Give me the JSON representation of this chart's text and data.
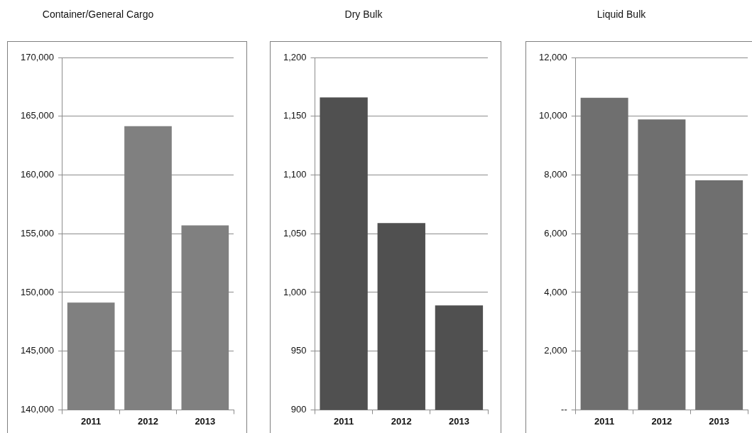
{
  "chart_data": [
    {
      "type": "bar",
      "title": "Container/General Cargo",
      "categories": [
        "2011",
        "2012",
        "2013"
      ],
      "values": [
        149140,
        164160,
        155700
      ],
      "color": "#808080",
      "ylim": [
        140000,
        170000
      ],
      "yticks": [
        {
          "value": 140000,
          "label": "140,000"
        },
        {
          "value": 145000,
          "label": "145,000"
        },
        {
          "value": 150000,
          "label": "150,000"
        },
        {
          "value": 155000,
          "label": "155,000"
        },
        {
          "value": 160000,
          "label": "160,000"
        },
        {
          "value": 165000,
          "label": "165,000"
        },
        {
          "value": 170000,
          "label": "170,000"
        }
      ],
      "grid": "y",
      "legend": false
    },
    {
      "type": "bar",
      "title": "Dry Bulk",
      "categories": [
        "2011",
        "2012",
        "2013"
      ],
      "values": [
        1166,
        1059,
        989
      ],
      "color": "#505050",
      "ylim": [
        900,
        1200
      ],
      "yticks": [
        900,
        950,
        {
          "value": 1000,
          "label": "1,000"
        },
        {
          "value": 1050,
          "label": "1,050"
        },
        {
          "value": 1100,
          "label": "1,100"
        },
        {
          "value": 1150,
          "label": "1,150"
        },
        {
          "value": 1200,
          "label": "1,200"
        }
      ],
      "grid": "y",
      "legend": false
    },
    {
      "type": "bar",
      "title": "Liquid Bulk",
      "categories": [
        "2011",
        "2012",
        "2013"
      ],
      "values": [
        10630,
        9890,
        7820
      ],
      "color": "#6f6f6f",
      "ylim": [
        0,
        12000
      ],
      "yticks": [
        {
          "value": 0,
          "label": "--"
        },
        {
          "value": 2000,
          "label": "2,000"
        },
        {
          "value": 4000,
          "label": "4,000"
        },
        {
          "value": 6000,
          "label": "6,000"
        },
        {
          "value": 8000,
          "label": "8,000"
        },
        {
          "value": 10000,
          "label": "10,000"
        },
        {
          "value": 12000,
          "label": "12,000"
        }
      ],
      "grid": "y",
      "legend": false
    }
  ]
}
